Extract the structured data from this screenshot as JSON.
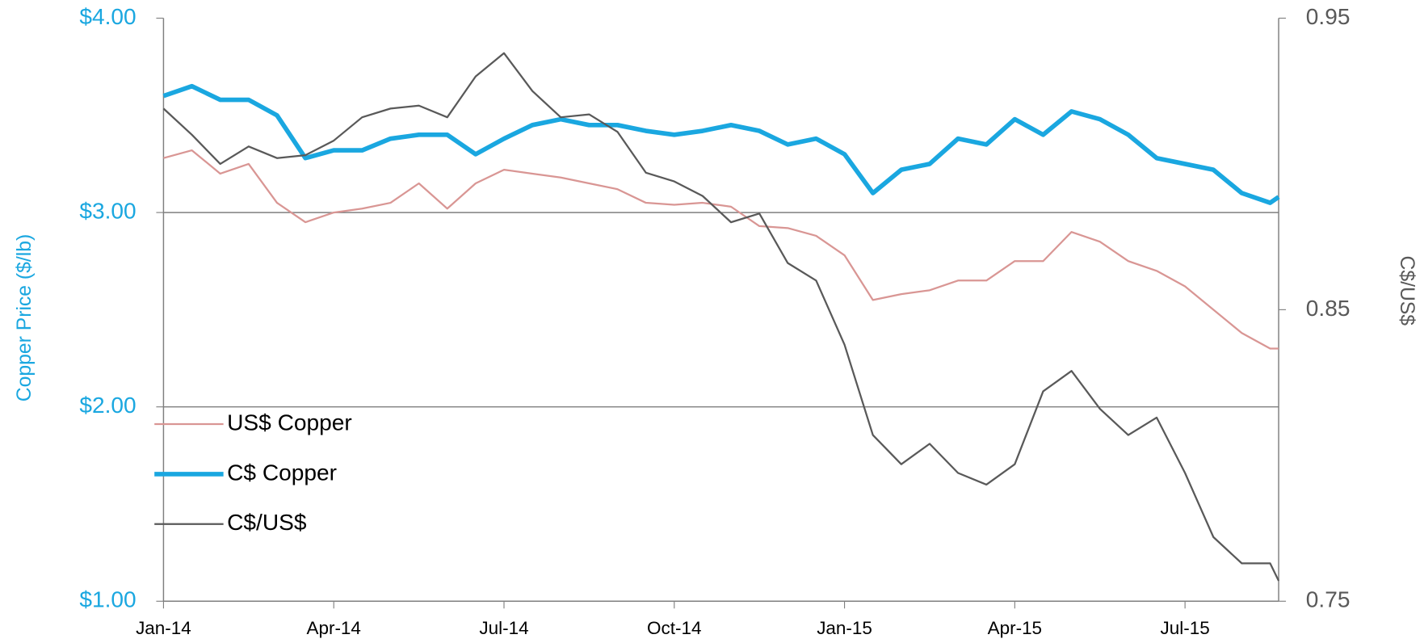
{
  "chart_data": {
    "type": "line",
    "x": [
      0,
      0.5,
      1,
      1.5,
      2,
      2.5,
      3,
      3.5,
      4,
      4.5,
      5,
      5.5,
      6,
      6.5,
      7,
      7.5,
      8,
      8.5,
      9,
      9.5,
      10,
      10.5,
      11,
      11.5,
      12,
      12.5,
      13,
      13.5,
      14,
      14.5,
      15,
      15.5,
      16,
      16.5,
      17,
      17.5,
      18,
      18.5,
      19,
      19.5,
      19.65
    ],
    "xlim": [
      0,
      19.65
    ],
    "xticks": [
      {
        "value": 0,
        "label": "Jan-14"
      },
      {
        "value": 3,
        "label": "Apr-14"
      },
      {
        "value": 6,
        "label": "Jul-14"
      },
      {
        "value": 9,
        "label": "Oct-14"
      },
      {
        "value": 12,
        "label": "Jan-15"
      },
      {
        "value": 15,
        "label": "Apr-15"
      },
      {
        "value": 18,
        "label": "Jul-15"
      }
    ],
    "ylabel": "Copper Price ($/lb)",
    "y2label": "C$/US$",
    "ylim": [
      1,
      4
    ],
    "yticks": [
      {
        "value": 1,
        "label": "$1.00"
      },
      {
        "value": 2,
        "label": "$2.00"
      },
      {
        "value": 3,
        "label": "$3.00"
      },
      {
        "value": 4,
        "label": "$4.00"
      }
    ],
    "y2lim": [
      0.75,
      0.95
    ],
    "y2ticks": [
      0.75,
      0.85,
      0.95
    ],
    "grid": true,
    "legend": "lower left",
    "series": [
      {
        "name": "US$ Copper",
        "color": "#d99694",
        "width": 2,
        "values": [
          3.28,
          3.32,
          3.2,
          3.25,
          3.05,
          2.95,
          3.0,
          3.02,
          3.05,
          3.15,
          3.02,
          3.15,
          3.22,
          3.2,
          3.18,
          3.15,
          3.12,
          3.05,
          3.04,
          3.05,
          3.03,
          2.93,
          2.92,
          2.88,
          2.78,
          2.55,
          2.58,
          2.6,
          2.65,
          2.65,
          2.75,
          2.75,
          2.9,
          2.85,
          2.75,
          2.7,
          2.62,
          2.5,
          2.38,
          2.3,
          2.3
        ]
      },
      {
        "name": "C$ Copper",
        "color": "#1aa7e0",
        "width": 5,
        "values": [
          3.6,
          3.65,
          3.58,
          3.58,
          3.5,
          3.28,
          3.32,
          3.32,
          3.38,
          3.4,
          3.4,
          3.3,
          3.38,
          3.45,
          3.48,
          3.45,
          3.45,
          3.42,
          3.4,
          3.42,
          3.45,
          3.42,
          3.35,
          3.38,
          3.3,
          3.1,
          3.22,
          3.25,
          3.38,
          3.35,
          3.48,
          3.4,
          3.52,
          3.48,
          3.4,
          3.28,
          3.25,
          3.22,
          3.1,
          3.05,
          3.08
        ]
      },
      {
        "name": "C$/US$",
        "color": "#595959",
        "width": 2,
        "axis": "y2",
        "values": [
          0.919,
          0.91,
          0.9,
          0.906,
          0.902,
          0.903,
          0.908,
          0.916,
          0.919,
          0.92,
          0.916,
          0.93,
          0.938,
          0.925,
          0.916,
          0.917,
          0.911,
          0.897,
          0.894,
          0.889,
          0.88,
          0.883,
          0.866,
          0.86,
          0.838,
          0.807,
          0.797,
          0.804,
          0.794,
          0.79,
          0.797,
          0.822,
          0.829,
          0.816,
          0.807,
          0.813,
          0.794,
          0.772,
          0.763,
          0.763,
          0.757
        ]
      }
    ]
  }
}
